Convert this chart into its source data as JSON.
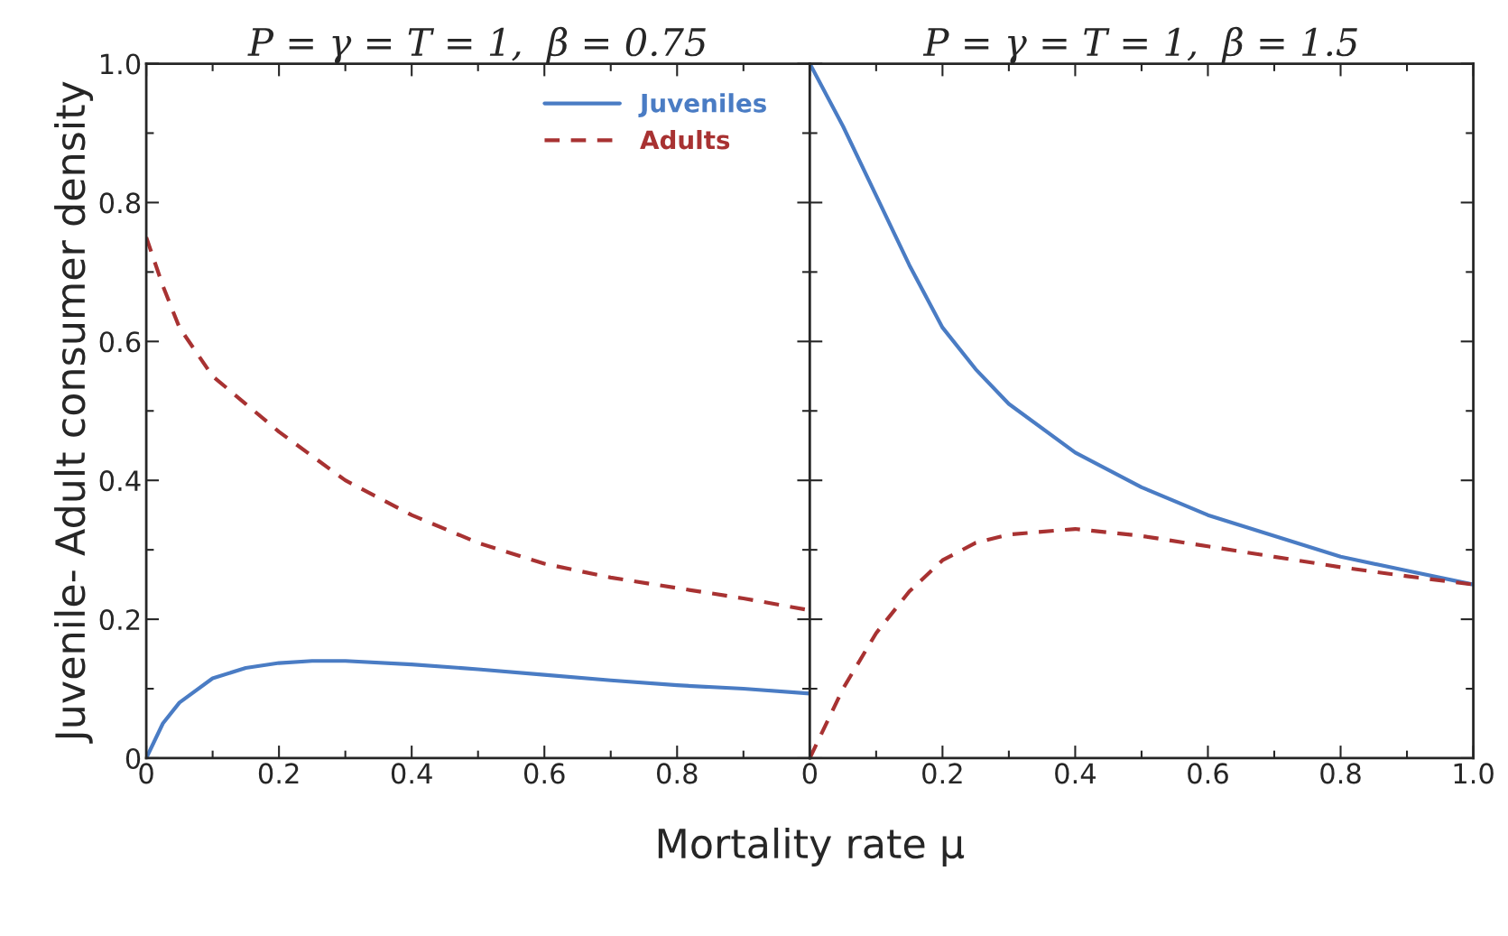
{
  "chart_data": [
    {
      "type": "line",
      "title": "P = γ = T = 1,  β = 0.75",
      "xlabel": "Mortality rate μ",
      "ylabel": "Juvenile- Adult consumer density",
      "xlim": [
        0,
        1.0
      ],
      "ylim": [
        0,
        1.0
      ],
      "xticks": [
        0,
        0.2,
        0.4,
        0.6,
        0.8,
        {
          "value": 1.0,
          "label": null
        }
      ],
      "yticks": [
        0,
        0.2,
        0.4,
        0.6,
        0.8,
        {
          "value": 1.0,
          "label": "1.0"
        }
      ],
      "legend": "top right",
      "grid": false,
      "series": [
        {
          "name": "Juveniles",
          "color": "#4a7cc4",
          "line_style": "solid",
          "x": [
            0,
            0.025,
            0.05,
            0.1,
            0.15,
            0.2,
            0.25,
            0.3,
            0.4,
            0.5,
            0.6,
            0.7,
            0.8,
            0.9,
            1.0
          ],
          "values": [
            0,
            0.05,
            0.08,
            0.115,
            0.13,
            0.137,
            0.14,
            0.14,
            0.135,
            0.128,
            0.12,
            0.112,
            0.105,
            0.1,
            0.093
          ]
        },
        {
          "name": "Adults",
          "color": "#a83232",
          "line_style": "dashed",
          "x": [
            0,
            0.025,
            0.05,
            0.1,
            0.15,
            0.2,
            0.3,
            0.4,
            0.5,
            0.6,
            0.7,
            0.8,
            0.9,
            1.0
          ],
          "values": [
            0.75,
            0.68,
            0.62,
            0.55,
            0.51,
            0.47,
            0.4,
            0.35,
            0.31,
            0.28,
            0.26,
            0.245,
            0.23,
            0.213
          ]
        }
      ]
    },
    {
      "type": "line",
      "title": "P = γ = T = 1,  β = 1.5",
      "xlim": [
        0,
        1.0
      ],
      "ylim": [
        0,
        1.0
      ],
      "xticks": [
        0,
        0.2,
        0.4,
        0.6,
        0.8,
        {
          "value": 1.0,
          "label": "1.0"
        }
      ],
      "yticks": [
        0,
        0.2,
        0.4,
        0.6,
        0.8,
        1.0
      ],
      "tick_labels": "x",
      "grid": false,
      "series": [
        {
          "color": "#4a7cc4",
          "line_style": "solid",
          "x": [
            0,
            0.05,
            0.1,
            0.15,
            0.2,
            0.25,
            0.3,
            0.4,
            0.5,
            0.6,
            0.7,
            0.8,
            0.9,
            1.0
          ],
          "values": [
            1.0,
            0.91,
            0.81,
            0.71,
            0.62,
            0.56,
            0.51,
            0.44,
            0.39,
            0.35,
            0.32,
            0.29,
            0.27,
            0.25
          ]
        },
        {
          "color": "#a83232",
          "line_style": "dashed",
          "x": [
            0,
            0.05,
            0.1,
            0.15,
            0.2,
            0.25,
            0.3,
            0.4,
            0.5,
            0.6,
            0.7,
            0.8,
            0.9,
            1.0
          ],
          "values": [
            0,
            0.1,
            0.18,
            0.24,
            0.285,
            0.31,
            0.322,
            0.33,
            0.32,
            0.305,
            0.29,
            0.275,
            0.262,
            0.25
          ]
        }
      ]
    }
  ]
}
